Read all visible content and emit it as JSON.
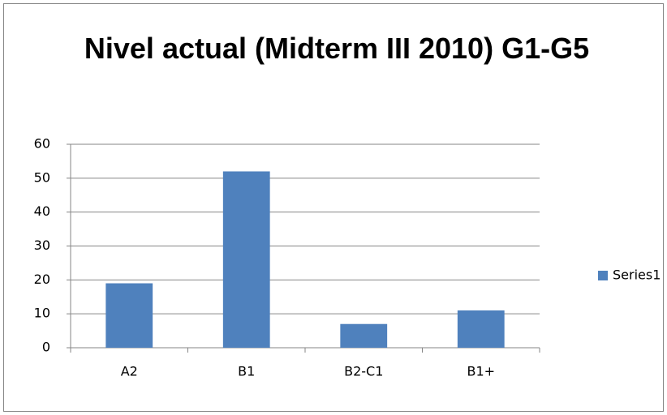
{
  "chart_data": {
    "type": "bar",
    "title": "Nivel actual (Midterm III 2010) G1-G5",
    "categories": [
      "A2",
      "B1",
      "B2-C1",
      "B1+"
    ],
    "series": [
      {
        "name": "Series1",
        "color": "#4f81bd",
        "values": [
          19,
          52,
          7,
          11
        ]
      }
    ],
    "ylim": [
      0,
      60
    ],
    "yticks": [
      0,
      10,
      20,
      30,
      40,
      50,
      60
    ],
    "grid": true,
    "legend": "right"
  }
}
